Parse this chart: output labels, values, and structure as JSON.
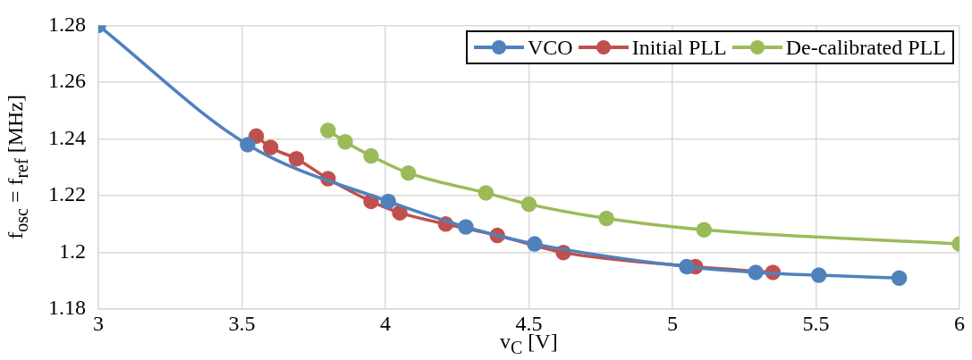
{
  "chart_data": {
    "type": "line",
    "xlabel": "v$_{C}$ [V]",
    "ylabel": "f$_{osc}$ = f$_{ref}$ [MHz]",
    "xlim": [
      3,
      6
    ],
    "xticks": [
      3,
      3.5,
      4,
      4.5,
      5,
      5.5,
      6
    ],
    "ylim": [
      1.18,
      1.28
    ],
    "yticks": [
      1.18,
      1.2,
      1.22,
      1.24,
      1.26,
      1.28
    ],
    "grid": true,
    "legend": "top right",
    "marker": "circle",
    "series": [
      {
        "name": "VCO",
        "color": "#4f81bd",
        "x": [
          3,
          3.52,
          4.01,
          4.28,
          4.52,
          5.05,
          5.29,
          5.51,
          5.79
        ],
        "values": [
          1.28,
          1.238,
          1.218,
          1.209,
          1.203,
          1.195,
          1.193,
          1.192,
          1.191
        ]
      },
      {
        "name": "Initial PLL",
        "color": "#c0504d",
        "x": [
          3.55,
          3.6,
          3.69,
          3.8,
          3.95,
          4.05,
          4.21,
          4.39,
          4.62,
          5.08,
          5.35
        ],
        "values": [
          1.241,
          1.237,
          1.233,
          1.226,
          1.218,
          1.214,
          1.21,
          1.206,
          1.2,
          1.195,
          1.193
        ]
      },
      {
        "name": "De-calibrated PLL",
        "color": "#9bbb59",
        "x": [
          3.8,
          3.86,
          3.95,
          4.08,
          4.35,
          4.5,
          4.77,
          5.11,
          6
        ],
        "values": [
          1.243,
          1.239,
          1.234,
          1.228,
          1.221,
          1.217,
          1.212,
          1.208,
          1.203
        ]
      }
    ]
  }
}
